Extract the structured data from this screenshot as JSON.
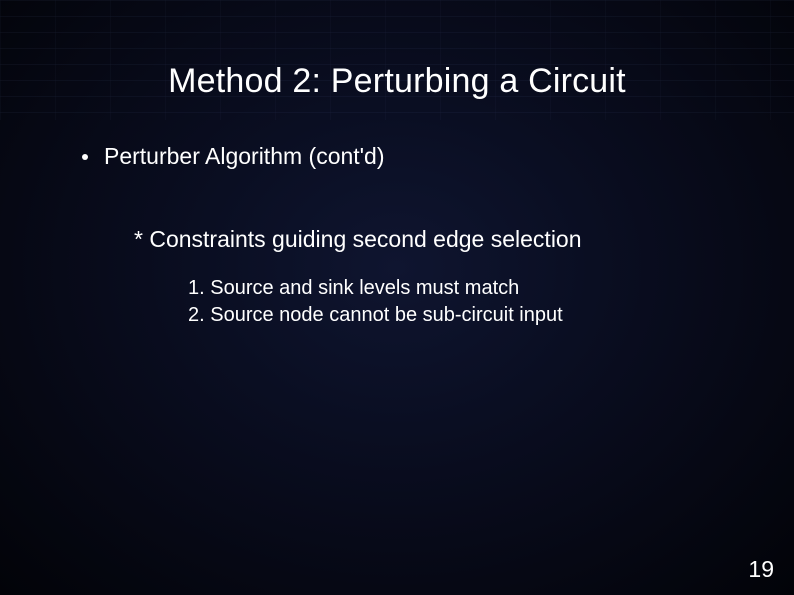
{
  "slide": {
    "title": "Method 2: Perturbing a Circuit",
    "bullet": "Perturber Algorithm (cont'd)",
    "sub1": "* Constraints guiding second edge selection",
    "sub2a": "1. Source and sink levels must match",
    "sub2b": "2. Source node cannot be sub-circuit input",
    "page_number": "19"
  },
  "style": {
    "title_fontsize": 34,
    "bullet_fontsize": 23,
    "sub1_fontsize": 23,
    "sub2_fontsize": 20,
    "page_number_fontsize": 23,
    "text_color": "#ffffff",
    "background_gradient_center": "#0f1530",
    "background_gradient_mid": "#0a0e22",
    "background_gradient_outer": "#060814",
    "background_gradient_edge": "#020308",
    "grid_line_color": "rgba(120,140,200,0.4)",
    "font_family": "Arial"
  }
}
